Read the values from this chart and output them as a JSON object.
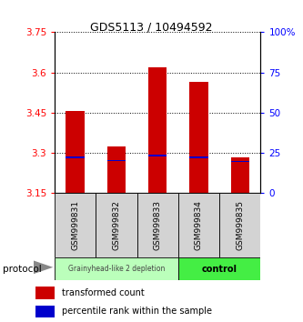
{
  "title": "GDS5113 / 10494592",
  "samples": [
    "GSM999831",
    "GSM999832",
    "GSM999833",
    "GSM999834",
    "GSM999835"
  ],
  "bar_bottom": 3.15,
  "bar_tops": [
    3.455,
    3.325,
    3.62,
    3.565,
    3.285
  ],
  "percentile_values": [
    3.283,
    3.272,
    3.29,
    3.283,
    3.268
  ],
  "ylim": [
    3.15,
    3.75
  ],
  "yticks_left": [
    3.15,
    3.3,
    3.45,
    3.6,
    3.75
  ],
  "ytick_labels_left": [
    "3.15",
    "3.3",
    "3.45",
    "3.6",
    "3.75"
  ],
  "yticks_right_pct": [
    0,
    25,
    50,
    75,
    100
  ],
  "ytick_labels_right": [
    "0",
    "25",
    "50",
    "75",
    "100%"
  ],
  "bar_color": "#cc0000",
  "percentile_color": "#0000cc",
  "group1_label": "Grainyhead-like 2 depletion",
  "group2_label": "control",
  "group1_color": "#bbffbb",
  "group2_color": "#44ee44",
  "protocol_label": "protocol",
  "legend1": "transformed count",
  "legend2": "percentile rank within the sample",
  "figsize": [
    3.33,
    3.54
  ],
  "dpi": 100
}
